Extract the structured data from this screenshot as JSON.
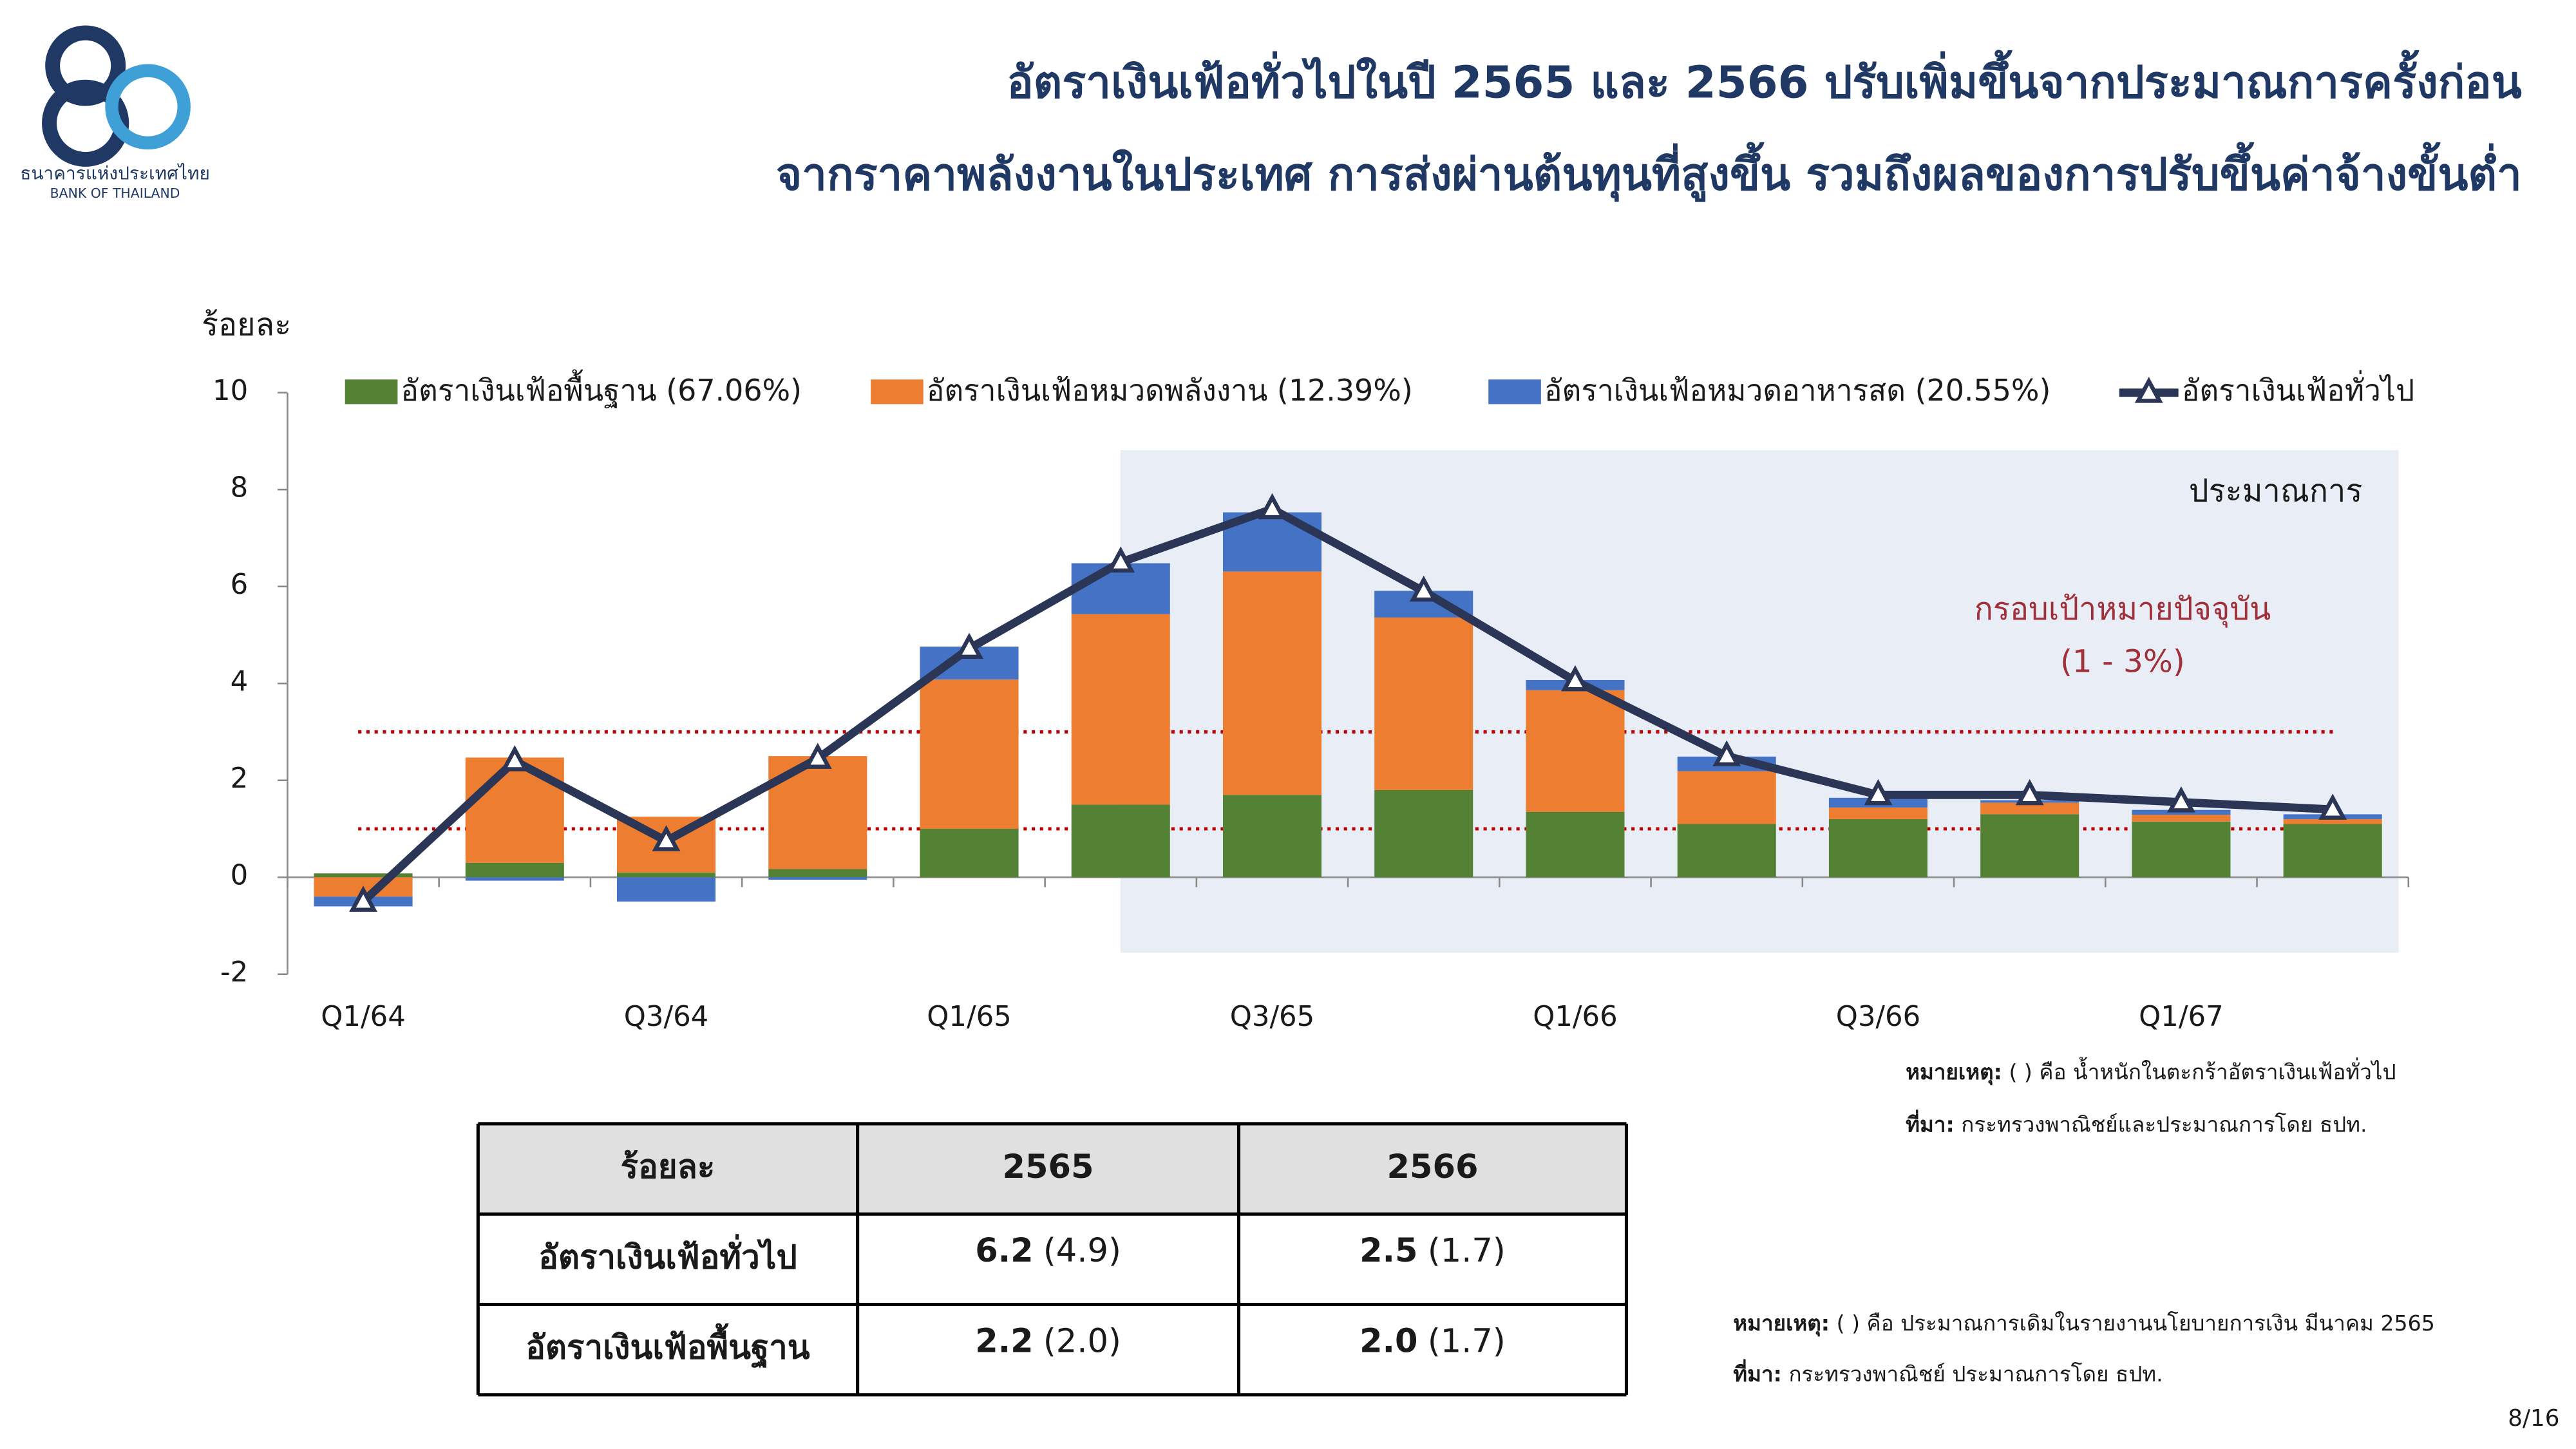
{
  "header": {
    "title": [
      "อัตราเงินเฟ้อทั่วไปในปี 2565 และ 2566 ปรับเพิ่มขึ้นจากประมาณการครั้งก่อน",
      "จากราคาพลังงานในประเทศ การส่งผ่านต้นทุนที่สูงขึ้น รวมถึงผลของการปรับขึ้นค่าจ้างขั้นต่ำ"
    ],
    "logo_text": [
      "ธนาคารแห่งประเทศไทย",
      "BANK OF THAILAND"
    ]
  },
  "chart_data": {
    "type": "bar",
    "stacked": true,
    "y_label": "ร้อยละ",
    "categories": [
      "Q1/64",
      null,
      "Q3/64",
      null,
      "Q1/65",
      null,
      "Q3/65",
      null,
      "Q1/66",
      null,
      "Q3/66",
      null,
      "Q1/67",
      null
    ],
    "series": [
      {
        "name": "อัตราเงินเฟ้อพื้นฐาน (67.06%)",
        "type": "bar",
        "color": "#548235",
        "values": [
          0.08,
          0.3,
          0.1,
          0.17,
          1.0,
          1.5,
          1.7,
          1.8,
          1.35,
          1.1,
          1.2,
          1.3,
          1.15,
          1.1
        ]
      },
      {
        "name": "อัตราเงินเฟ้อหมวดพลังงาน (12.39%)",
        "type": "bar",
        "color": "#ed7d31",
        "values": [
          -0.4,
          2.17,
          1.15,
          2.33,
          3.08,
          3.93,
          4.61,
          3.56,
          2.51,
          1.09,
          0.24,
          0.24,
          0.14,
          0.1
        ]
      },
      {
        "name": "อัตราเงินเฟ้อหมวดอาหารสด (20.55%)",
        "type": "bar",
        "color": "#4472c4",
        "values": [
          -0.2,
          -0.07,
          -0.5,
          -0.05,
          0.68,
          1.05,
          1.22,
          0.55,
          0.21,
          0.3,
          0.2,
          0.05,
          0.1,
          0.1
        ]
      },
      {
        "name": "อัตราเงินเฟ้อทั่วไป",
        "type": "line",
        "color": "#2b3556",
        "values": [
          -0.5,
          2.4,
          0.75,
          2.45,
          4.72,
          6.5,
          7.6,
          5.9,
          4.05,
          2.5,
          1.7,
          1.7,
          1.55,
          1.4
        ]
      }
    ],
    "ylim": [
      -2,
      10
    ],
    "yticks": [
      -2,
      0,
      2,
      4,
      6,
      8,
      10
    ],
    "target_lines": [
      1,
      3
    ],
    "target_color": "#c00000",
    "annotations": [
      "ประมาณการ",
      "กรอบเป้าหมายปัจจุบัน",
      "(1 - 3%)"
    ]
  },
  "chart_notes": [
    {
      "key": "หมายเหตุ:",
      "text": " ( ) คือ น้ำหนักในตะกร้าอัตราเงินเฟ้อทั่วไป"
    },
    {
      "key": "ที่มา:",
      "text": " กระทรวงพาณิชย์และประมาณการโดย ธปท."
    }
  ],
  "table": {
    "header": [
      "ร้อยละ",
      "2565",
      "2566"
    ],
    "rows": [
      {
        "label": "อัตราเงินเฟ้อทั่วไป",
        "cells": [
          {
            "value": "6.2",
            "previous": "(4.9)"
          },
          {
            "value": "2.5",
            "previous": "(1.7)"
          }
        ]
      },
      {
        "label": "อัตราเงินเฟ้อพื้นฐาน",
        "cells": [
          {
            "value": "2.2",
            "previous": "(2.0)"
          },
          {
            "value": "2.0",
            "previous": "(1.7)"
          }
        ]
      }
    ]
  },
  "table_notes": [
    {
      "key": "หมายเหตุ:",
      "text": " ( ) คือ ประมาณการเดิมในรายงานนโยบายการเงิน มีนาคม 2565"
    },
    {
      "key": "ที่มา:",
      "text": " กระทรวงพาณิชย์ ประมาณการโดย ธปท."
    }
  ],
  "page": "8/16"
}
